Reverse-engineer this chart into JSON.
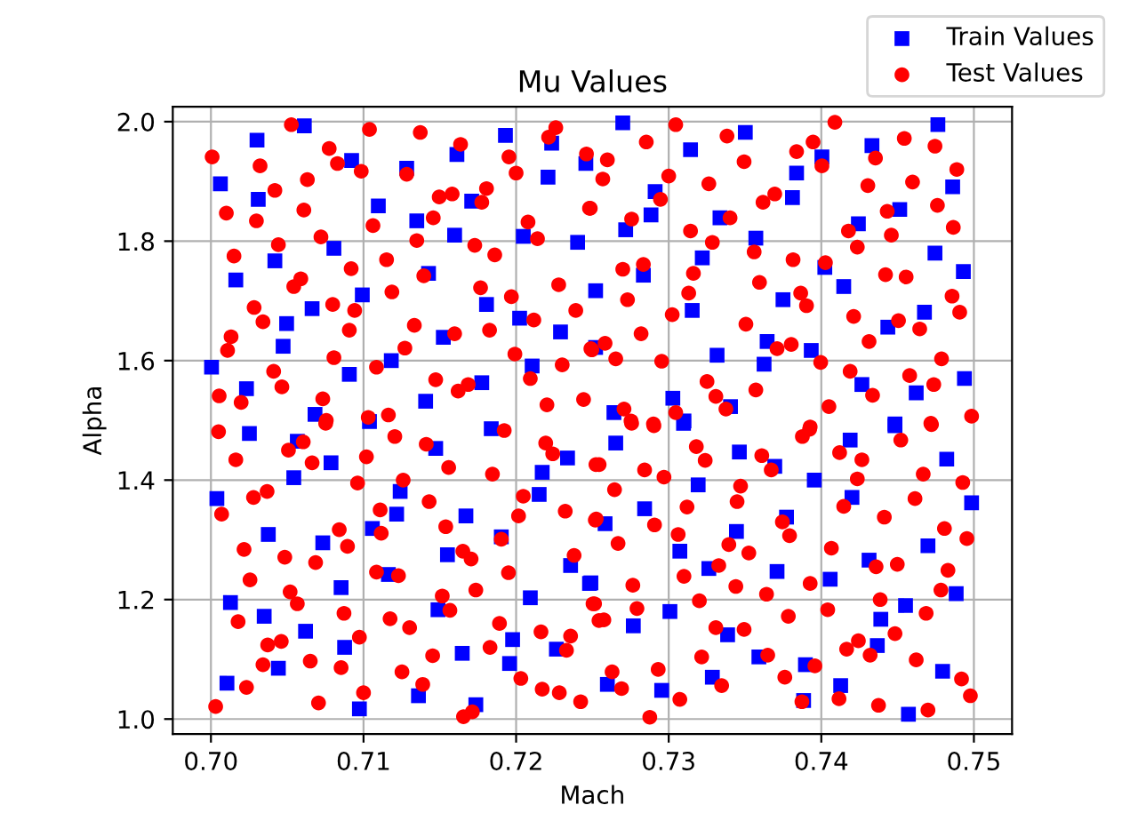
{
  "chart_data": {
    "type": "scatter",
    "title": "Mu Values",
    "xlabel": "Mach",
    "ylabel": "Alpha",
    "xlim": [
      0.6975,
      0.7525
    ],
    "ylim": [
      0.975,
      2.025
    ],
    "xticks": [
      {
        "value": 0.7,
        "label": "0.70"
      },
      {
        "value": 0.71,
        "label": "0.71"
      },
      {
        "value": 0.72,
        "label": "0.72"
      },
      {
        "value": 0.73,
        "label": "0.73"
      },
      {
        "value": 0.74,
        "label": "0.74"
      },
      {
        "value": 0.75,
        "label": "0.75"
      }
    ],
    "yticks": [
      {
        "value": 1.0,
        "label": "1.0"
      },
      {
        "value": 1.2,
        "label": "1.2"
      },
      {
        "value": 1.4,
        "label": "1.4"
      },
      {
        "value": 1.6,
        "label": "1.6"
      },
      {
        "value": 1.8,
        "label": "1.8"
      },
      {
        "value": 2.0,
        "label": "2.0"
      }
    ],
    "grid": true,
    "legend": "top right",
    "series": [
      {
        "name": "Train Values",
        "color": "#0000ff",
        "marker": "square",
        "x": [
          0.70302,
          0.70612,
          0.70922,
          0.71283,
          0.71612,
          0.7193,
          0.72233,
          0.72457,
          0.72209,
          0.70062,
          0.7031,
          0.71097,
          0.71349,
          0.71709,
          0.71597,
          0.72047,
          0.72403,
          0.70806,
          0.70419,
          0.70163,
          0.71426,
          0.70992,
          0.71806,
          0.70663,
          0.70496,
          0.72023,
          0.72291,
          0.70473,
          0.71523,
          0.71182,
          0.70004,
          0.70233,
          0.70907,
          0.71775,
          0.71407,
          0.70682,
          0.72105,
          0.72699,
          0.73143,
          0.73502,
          0.74004,
          0.73838,
          0.74332,
          0.74764,
          0.74861,
          0.72911,
          0.72884,
          0.72718,
          0.73336,
          0.73811,
          0.74243,
          0.74514,
          0.73571,
          0.7322,
          0.72834,
          0.72521,
          0.73749,
          0.74023,
          0.74147,
          0.74745,
          0.74931,
          0.73154,
          0.74676,
          0.74436,
          0.73645,
          0.73317,
          0.73625,
          0.73934,
          0.74266,
          0.74622,
          0.74938,
          0.73027,
          0.72641,
          0.731,
          0.73405,
          0.74483,
          0.72521,
          0.70252,
          0.70566,
          0.70787,
          0.70543,
          0.71039,
          0.71473,
          0.71837,
          0.72337,
          0.72171,
          0.72151,
          0.70039,
          0.7124,
          0.71217,
          0.71058,
          0.71671,
          0.71903,
          0.70376,
          0.70733,
          0.7155,
          0.72357,
          0.72481,
          0.70128,
          0.70349,
          0.70853,
          0.71488,
          0.7062,
          0.70876,
          0.70442,
          0.70105,
          0.72093,
          0.71977,
          0.71647,
          0.71957,
          0.72264,
          0.7136,
          0.71736,
          0.70973,
          0.71163,
          0.72653,
          0.73097,
          0.73463,
          0.73695,
          0.73193,
          0.73954,
          0.74189,
          0.74483,
          0.74822,
          0.74985,
          0.74201,
          0.72842,
          0.72583,
          0.73772,
          0.73444,
          0.73073,
          0.73263,
          0.7371,
          0.74058,
          0.74313,
          0.74699,
          0.74884,
          0.7249,
          0.73008,
          0.72768,
          0.73386,
          0.73591,
          0.7439,
          0.74552,
          0.74367,
          0.73896,
          0.73286,
          0.72954,
          0.72598,
          0.74127,
          0.73884,
          0.74795,
          0.74571
        ],
        "values": [
          1.969,
          1.993,
          1.935,
          1.922,
          1.945,
          1.977,
          1.964,
          1.93,
          1.907,
          1.896,
          1.87,
          1.859,
          1.834,
          1.867,
          1.81,
          1.808,
          1.798,
          1.788,
          1.767,
          1.735,
          1.746,
          1.71,
          1.694,
          1.687,
          1.662,
          1.671,
          1.648,
          1.624,
          1.639,
          1.6,
          1.589,
          1.553,
          1.577,
          1.563,
          1.532,
          1.51,
          1.591,
          1.998,
          1.953,
          1.982,
          1.941,
          1.914,
          1.96,
          1.995,
          1.891,
          1.883,
          1.844,
          1.819,
          1.839,
          1.873,
          1.829,
          1.853,
          1.805,
          1.772,
          1.743,
          1.717,
          1.702,
          1.756,
          1.724,
          1.78,
          1.749,
          1.684,
          1.681,
          1.656,
          1.632,
          1.609,
          1.594,
          1.617,
          1.56,
          1.546,
          1.57,
          1.537,
          1.513,
          1.499,
          1.523,
          1.494,
          1.622,
          1.478,
          1.465,
          1.429,
          1.404,
          1.498,
          1.453,
          1.486,
          1.437,
          1.413,
          1.376,
          1.369,
          1.381,
          1.343,
          1.319,
          1.34,
          1.305,
          1.309,
          1.295,
          1.275,
          1.257,
          1.227,
          1.195,
          1.172,
          1.22,
          1.183,
          1.147,
          1.12,
          1.085,
          1.06,
          1.203,
          1.133,
          1.11,
          1.093,
          1.117,
          1.039,
          1.024,
          1.017,
          1.242,
          1.462,
          1.495,
          1.447,
          1.423,
          1.392,
          1.4,
          1.467,
          1.491,
          1.435,
          1.362,
          1.371,
          1.352,
          1.327,
          1.338,
          1.314,
          1.281,
          1.252,
          1.247,
          1.234,
          1.266,
          1.29,
          1.21,
          1.228,
          1.18,
          1.156,
          1.141,
          1.104,
          1.167,
          1.19,
          1.123,
          1.091,
          1.07,
          1.048,
          1.058,
          1.056,
          1.031,
          1.08,
          1.008
        ]
      },
      {
        "name": "Test Values",
        "color": "#ff0000",
        "marker": "circle",
        "x": [
          0.70527,
          0.71039,
          0.71372,
          0.71636,
          0.70775,
          0.70008,
          0.70322,
          0.70829,
          0.70985,
          0.71283,
          0.71953,
          0.72,
          0.72213,
          0.7226,
          0.72461,
          0.70419,
          0.70632,
          0.71496,
          0.71581,
          0.71806,
          0.71775,
          0.70101,
          0.70298,
          0.70609,
          0.71062,
          0.71457,
          0.72078,
          0.7214,
          0.72481,
          0.70442,
          0.70721,
          0.71349,
          0.71729,
          0.7186,
          0.70151,
          0.70919,
          0.71151,
          0.71395,
          0.70589,
          0.70543,
          0.71186,
          0.71767,
          0.71969,
          0.72279,
          0.70283,
          0.70341,
          0.70798,
          0.70942,
          0.72391,
          0.72116,
          0.70132,
          0.70109,
          0.70907,
          0.71333,
          0.71597,
          0.71826,
          0.71271,
          0.71992,
          0.70806,
          0.71085,
          0.70411,
          0.70465,
          0.71473,
          0.7162,
          0.71686,
          0.72093,
          0.72302,
          0.72496,
          0.70054,
          0.70198,
          0.70733,
          0.72202,
          0.72442,
          0.71031,
          0.71163,
          0.70756,
          0.73046,
          0.72853,
          0.73382,
          0.72598,
          0.73,
          0.73494,
          0.73946,
          0.73838,
          0.74004,
          0.74089,
          0.74544,
          0.74745,
          0.74355,
          0.74888,
          0.72568,
          0.72486,
          0.72946,
          0.73263,
          0.73618,
          0.73695,
          0.74305,
          0.74598,
          0.74761,
          0.72757,
          0.73402,
          0.74432,
          0.73143,
          0.73286,
          0.74178,
          0.74236,
          0.74459,
          0.74865,
          0.7356,
          0.73815,
          0.74027,
          0.72699,
          0.72834,
          0.73162,
          0.7273,
          0.73131,
          0.73595,
          0.73865,
          0.73903,
          0.74421,
          0.74556,
          0.74857,
          0.74907,
          0.73023,
          0.74212,
          0.74506,
          0.74645,
          0.73506,
          0.72819,
          0.74313,
          0.72583,
          0.7249,
          0.72653,
          0.72954,
          0.7371,
          0.73803,
          0.73996,
          0.74189,
          0.74788,
          0.74579,
          0.74737,
          0.74336,
          0.73251,
          0.73309,
          0.73375,
          0.73571,
          0.72707,
          0.72753,
          0.729,
          0.7405,
          0.74985,
          0.74718,
          0.73927,
          0.73046,
          0.7005,
          0.70163,
          0.70508,
          0.70605,
          0.70663,
          0.70752,
          0.71019,
          0.71205,
          0.71411,
          0.71558,
          0.71845,
          0.71922,
          0.72194,
          0.7224,
          0.72523,
          0.70961,
          0.7126,
          0.70279,
          0.70368,
          0.7007,
          0.71109,
          0.71116,
          0.7143,
          0.71539,
          0.72016,
          0.72047,
          0.72322,
          0.72519,
          0.70841,
          0.70895,
          0.70217,
          0.70484,
          0.70686,
          0.7238,
          0.71085,
          0.71229,
          0.71651,
          0.71705,
          0.71903,
          0.7195,
          0.70256,
          0.70519,
          0.70566,
          0.71736,
          0.71516,
          0.71566,
          0.72504,
          0.70178,
          0.70872,
          0.71174,
          0.71302,
          0.71891,
          0.72163,
          0.72543,
          0.70372,
          0.70461,
          0.70973,
          0.72357,
          0.7233,
          0.70341,
          0.70651,
          0.70853,
          0.71453,
          0.71829,
          0.71252,
          0.71388,
          0.72031,
          0.70233,
          0.71,
          0.72171,
          0.72283,
          0.72423,
          0.70031,
          0.70705,
          0.71655,
          0.71713,
          0.72757,
          0.72903,
          0.73181,
          0.73239,
          0.7361,
          0.73672,
          0.73923,
          0.73876,
          0.72544,
          0.72842,
          0.72969,
          0.72645,
          0.72525,
          0.72907,
          0.72668,
          0.7312,
          0.73471,
          0.73448,
          0.73062,
          0.73394,
          0.73525,
          0.73328,
          0.731,
          0.73745,
          0.73792,
          0.7412,
          0.74266,
          0.74236,
          0.74521,
          0.74722,
          0.74668,
          0.74927,
          0.74614,
          0.74147,
          0.74413,
          0.74807,
          0.74954,
          0.74066,
          0.74359,
          0.74498,
          0.7483,
          0.74784,
          0.7344,
          0.73641,
          0.73927,
          0.72765,
          0.72514,
          0.72792,
          0.72575,
          0.73201,
          0.73309,
          0.73494,
          0.73784,
          0.74042,
          0.74386,
          0.74687,
          0.74483,
          0.74243,
          0.74166,
          0.7432,
          0.74622,
          0.73216,
          0.73649,
          0.73761,
          0.73958,
          0.72931,
          0.72629,
          0.72691,
          0.73347,
          0.73073,
          0.72876,
          0.74116,
          0.73873,
          0.74375,
          0.74699,
          0.74919,
          0.74977
        ],
        "values": [
          1.995,
          1.987,
          1.982,
          1.962,
          1.955,
          1.941,
          1.926,
          1.93,
          1.917,
          1.912,
          1.941,
          1.914,
          1.974,
          1.99,
          1.946,
          1.885,
          1.903,
          1.874,
          1.879,
          1.888,
          1.865,
          1.847,
          1.834,
          1.852,
          1.826,
          1.839,
          1.832,
          1.804,
          1.855,
          1.794,
          1.807,
          1.801,
          1.793,
          1.777,
          1.775,
          1.754,
          1.769,
          1.742,
          1.737,
          1.724,
          1.715,
          1.722,
          1.707,
          1.727,
          1.689,
          1.665,
          1.694,
          1.684,
          1.684,
          1.668,
          1.64,
          1.617,
          1.651,
          1.659,
          1.645,
          1.651,
          1.621,
          1.611,
          1.605,
          1.589,
          1.582,
          1.556,
          1.568,
          1.549,
          1.56,
          1.57,
          1.593,
          1.618,
          1.541,
          1.53,
          1.536,
          1.526,
          1.535,
          1.505,
          1.509,
          1.5,
          1.995,
          1.966,
          1.976,
          1.936,
          1.909,
          1.933,
          1.966,
          1.95,
          1.926,
          1.999,
          1.972,
          1.959,
          1.939,
          1.92,
          1.904,
          1.855,
          1.87,
          1.896,
          1.865,
          1.879,
          1.893,
          1.899,
          1.86,
          1.837,
          1.839,
          1.85,
          1.817,
          1.798,
          1.817,
          1.79,
          1.81,
          1.823,
          1.782,
          1.769,
          1.764,
          1.753,
          1.761,
          1.746,
          1.702,
          1.713,
          1.731,
          1.713,
          1.692,
          1.744,
          1.74,
          1.708,
          1.681,
          1.677,
          1.674,
          1.667,
          1.653,
          1.661,
          1.645,
          1.632,
          1.629,
          1.62,
          1.603,
          1.599,
          1.62,
          1.627,
          1.597,
          1.582,
          1.603,
          1.575,
          1.56,
          1.542,
          1.565,
          1.54,
          1.519,
          1.551,
          1.519,
          1.499,
          1.494,
          1.523,
          1.507,
          1.495,
          1.489,
          1.513,
          1.481,
          1.434,
          1.45,
          1.464,
          1.429,
          1.495,
          1.439,
          1.473,
          1.46,
          1.421,
          1.41,
          1.483,
          1.462,
          1.444,
          1.426,
          1.395,
          1.4,
          1.371,
          1.381,
          1.343,
          1.35,
          1.311,
          1.364,
          1.322,
          1.34,
          1.373,
          1.348,
          1.333,
          1.317,
          1.289,
          1.284,
          1.271,
          1.262,
          1.274,
          1.246,
          1.24,
          1.281,
          1.268,
          1.301,
          1.245,
          1.233,
          1.213,
          1.193,
          1.216,
          1.206,
          1.182,
          1.193,
          1.163,
          1.177,
          1.168,
          1.153,
          1.16,
          1.146,
          1.165,
          1.124,
          1.13,
          1.137,
          1.139,
          1.115,
          1.091,
          1.097,
          1.086,
          1.106,
          1.12,
          1.079,
          1.058,
          1.068,
          1.053,
          1.044,
          1.05,
          1.044,
          1.029,
          1.021,
          1.027,
          1.004,
          1.012,
          1.495,
          1.491,
          1.456,
          1.433,
          1.441,
          1.417,
          1.485,
          1.473,
          1.426,
          1.417,
          1.405,
          1.384,
          1.335,
          1.325,
          1.294,
          1.355,
          1.39,
          1.364,
          1.309,
          1.292,
          1.278,
          1.257,
          1.239,
          1.33,
          1.307,
          1.446,
          1.434,
          1.402,
          1.467,
          1.493,
          1.41,
          1.396,
          1.369,
          1.356,
          1.338,
          1.319,
          1.302,
          1.286,
          1.255,
          1.259,
          1.249,
          1.216,
          1.222,
          1.209,
          1.227,
          1.224,
          1.193,
          1.185,
          1.166,
          1.198,
          1.153,
          1.15,
          1.172,
          1.183,
          1.2,
          1.177,
          1.143,
          1.131,
          1.117,
          1.107,
          1.099,
          1.104,
          1.107,
          1.07,
          1.089,
          1.083,
          1.079,
          1.051,
          1.056,
          1.033,
          1.003,
          1.034,
          1.029,
          1.023,
          1.015,
          1.067,
          1.039
        ]
      }
    ]
  }
}
